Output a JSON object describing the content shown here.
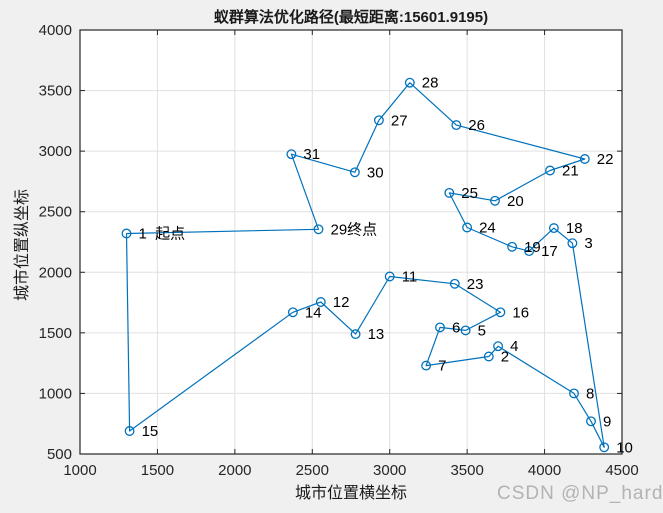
{
  "chart_data": {
    "type": "line",
    "title": "蚁群算法优化路径(最短距离:15601.9195)",
    "xlabel": "城市位置横坐标",
    "ylabel": "城市位置纵坐标",
    "xlim": [
      1000,
      4500
    ],
    "ylim": [
      500,
      4000
    ],
    "xticks": [
      1000,
      1500,
      2000,
      2500,
      3000,
      3500,
      4000,
      4500
    ],
    "yticks": [
      500,
      1000,
      1500,
      2000,
      2500,
      3000,
      3500,
      4000
    ],
    "grid": true,
    "legend": "none",
    "shortest_distance": 15601.9195,
    "start_city": 1,
    "end_city": 29,
    "colors": {
      "line": "#0072BD",
      "marker": "#0072BD",
      "grid": "#e0e0e0",
      "axis": "#262626",
      "plot_background": "#ffffff",
      "figure_background": "#f0f0f0",
      "watermark": "#b3b3b3",
      "point_label": "#000000"
    },
    "cities": [
      {
        "id": 1,
        "x": 1300,
        "y": 2320,
        "label": "1  起点"
      },
      {
        "id": 2,
        "x": 3640,
        "y": 1305,
        "label": "2"
      },
      {
        "id": 3,
        "x": 4180,
        "y": 2240,
        "label": "3"
      },
      {
        "id": 4,
        "x": 3700,
        "y": 1390,
        "label": "4"
      },
      {
        "id": 5,
        "x": 3490,
        "y": 1520,
        "label": "5"
      },
      {
        "id": 6,
        "x": 3325,
        "y": 1545,
        "label": "6"
      },
      {
        "id": 7,
        "x": 3235,
        "y": 1230,
        "label": "7"
      },
      {
        "id": 8,
        "x": 4190,
        "y": 1000,
        "label": "8"
      },
      {
        "id": 9,
        "x": 4300,
        "y": 770,
        "label": "9"
      },
      {
        "id": 10,
        "x": 4385,
        "y": 555,
        "label": "10"
      },
      {
        "id": 11,
        "x": 3000,
        "y": 1965,
        "label": "11"
      },
      {
        "id": 12,
        "x": 2555,
        "y": 1755,
        "label": "12"
      },
      {
        "id": 13,
        "x": 2780,
        "y": 1490,
        "label": "13"
      },
      {
        "id": 14,
        "x": 2375,
        "y": 1670,
        "label": "14"
      },
      {
        "id": 15,
        "x": 1320,
        "y": 690,
        "label": "15"
      },
      {
        "id": 16,
        "x": 3715,
        "y": 1670,
        "label": "16"
      },
      {
        "id": 17,
        "x": 3900,
        "y": 2175,
        "label": "17"
      },
      {
        "id": 18,
        "x": 4060,
        "y": 2365,
        "label": "18"
      },
      {
        "id": 19,
        "x": 3790,
        "y": 2210,
        "label": "19"
      },
      {
        "id": 20,
        "x": 3680,
        "y": 2590,
        "label": "20"
      },
      {
        "id": 21,
        "x": 4035,
        "y": 2840,
        "label": "21"
      },
      {
        "id": 22,
        "x": 4260,
        "y": 2935,
        "label": "22"
      },
      {
        "id": 23,
        "x": 3420,
        "y": 1905,
        "label": "23"
      },
      {
        "id": 24,
        "x": 3500,
        "y": 2370,
        "label": "24"
      },
      {
        "id": 25,
        "x": 3385,
        "y": 2655,
        "label": "25"
      },
      {
        "id": 26,
        "x": 3430,
        "y": 3215,
        "label": "26"
      },
      {
        "id": 27,
        "x": 2930,
        "y": 3255,
        "label": "27"
      },
      {
        "id": 28,
        "x": 3130,
        "y": 3565,
        "label": "28"
      },
      {
        "id": 29,
        "x": 2540,
        "y": 2355,
        "label": "29终点"
      },
      {
        "id": 30,
        "x": 2775,
        "y": 2825,
        "label": "30"
      },
      {
        "id": 31,
        "x": 2365,
        "y": 2975,
        "label": "31"
      }
    ],
    "tour": [
      1,
      15,
      14,
      12,
      13,
      11,
      23,
      16,
      5,
      6,
      7,
      2,
      4,
      8,
      9,
      10,
      3,
      18,
      17,
      19,
      24,
      25,
      20,
      21,
      22,
      26,
      28,
      27,
      30,
      31,
      29,
      1
    ]
  },
  "watermark": "CSDN @NP_hard"
}
